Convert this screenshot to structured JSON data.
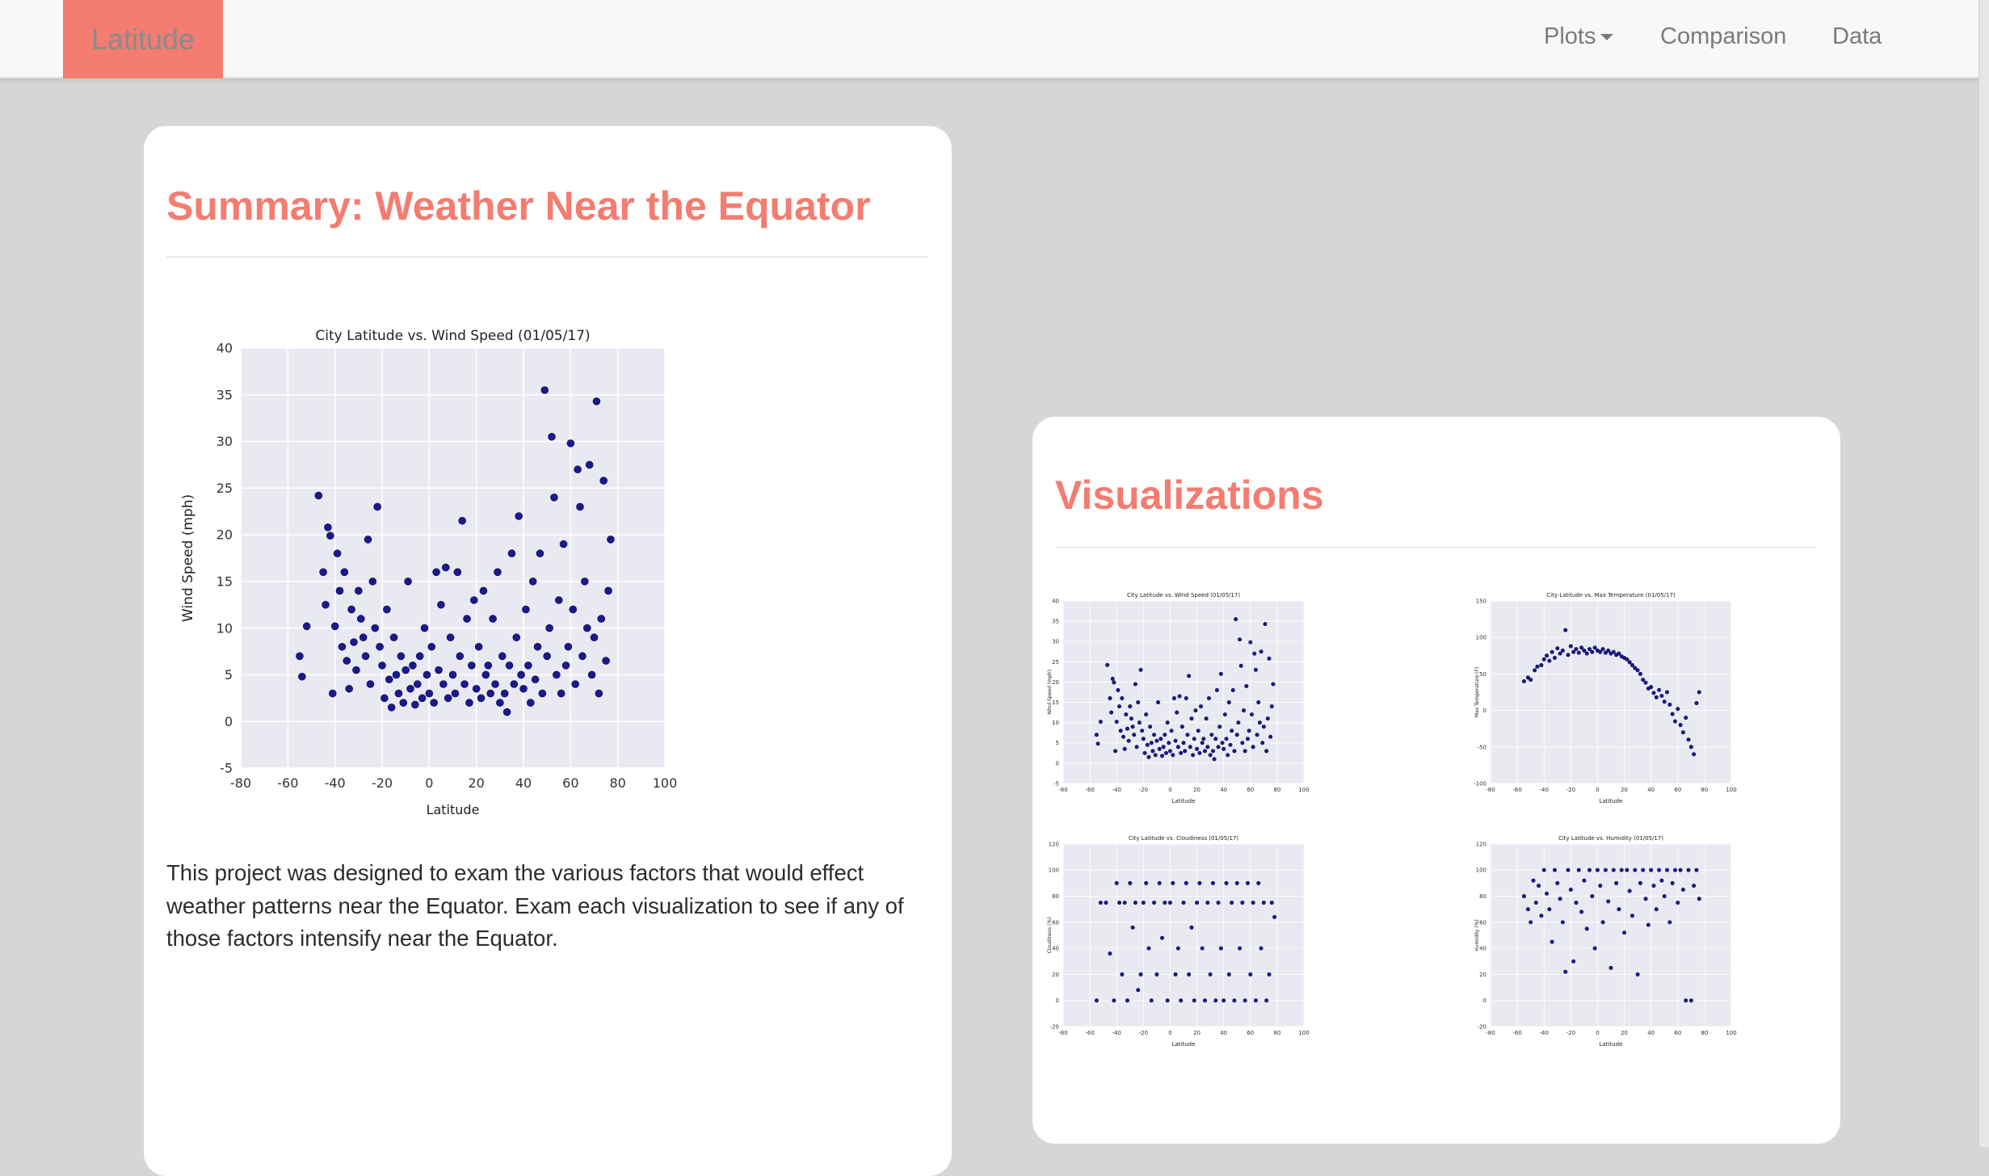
{
  "navbar": {
    "brand": "Latitude",
    "plots_label": "Plots",
    "comparison_label": "Comparison",
    "data_label": "Data"
  },
  "summary": {
    "title": "Summary: Weather Near the Equator",
    "description": "This project was designed to exam the various factors that would effect weather patterns near the Equator. Exam each visualization to see if any of those factors intensify near the Equator."
  },
  "visualizations": {
    "title": "Visualizations"
  },
  "colors": {
    "accent": "#f47c70",
    "point": "#1a1a8c",
    "plot_bg": "#e9e9f1"
  },
  "chart_data": [
    {
      "type": "scatter",
      "title": "City Latitude vs. Wind Speed (01/05/17)",
      "xlabel": "Latitude",
      "ylabel": "Wind Speed (mph)",
      "xlim": [
        -80,
        100
      ],
      "ylim": [
        -5,
        40
      ],
      "xticks": [
        -80,
        -60,
        -40,
        -20,
        0,
        20,
        40,
        60,
        80,
        100
      ],
      "yticks": [
        -5,
        0,
        5,
        10,
        15,
        20,
        25,
        30,
        35,
        40
      ],
      "grid": true,
      "points": [
        [
          -55,
          7
        ],
        [
          -54,
          4.8
        ],
        [
          -52,
          10.2
        ],
        [
          -47,
          24.2
        ],
        [
          -45,
          16
        ],
        [
          -44,
          12.5
        ],
        [
          -43,
          20.8
        ],
        [
          -42,
          19.9
        ],
        [
          -41,
          3
        ],
        [
          -40,
          10.2
        ],
        [
          -39,
          18
        ],
        [
          -38,
          14
        ],
        [
          -37,
          8
        ],
        [
          -36,
          16
        ],
        [
          -35,
          6.5
        ],
        [
          -34,
          3.5
        ],
        [
          -33,
          12
        ],
        [
          -32,
          8.5
        ],
        [
          -31,
          5.5
        ],
        [
          -30,
          14
        ],
        [
          -29,
          11
        ],
        [
          -28,
          9
        ],
        [
          -27,
          7
        ],
        [
          -26,
          19.5
        ],
        [
          -25,
          4
        ],
        [
          -24,
          15
        ],
        [
          -23,
          10
        ],
        [
          -22,
          23
        ],
        [
          -21,
          8
        ],
        [
          -20,
          6
        ],
        [
          -19,
          2.5
        ],
        [
          -18,
          12
        ],
        [
          -17,
          4.5
        ],
        [
          -16,
          1.5
        ],
        [
          -15,
          9
        ],
        [
          -14,
          5
        ],
        [
          -13,
          3
        ],
        [
          -12,
          7
        ],
        [
          -11,
          2
        ],
        [
          -10,
          5.5
        ],
        [
          -9,
          15
        ],
        [
          -8,
          3.5
        ],
        [
          -7,
          6
        ],
        [
          -6,
          1.8
        ],
        [
          -5,
          4
        ],
        [
          -4,
          7
        ],
        [
          -3,
          2.5
        ],
        [
          -2,
          10
        ],
        [
          -1,
          5
        ],
        [
          0,
          3
        ],
        [
          1,
          8
        ],
        [
          2,
          2
        ],
        [
          3,
          16
        ],
        [
          4,
          5.5
        ],
        [
          5,
          12.5
        ],
        [
          6,
          4
        ],
        [
          7,
          16.5
        ],
        [
          8,
          2.5
        ],
        [
          9,
          9
        ],
        [
          10,
          5
        ],
        [
          11,
          3
        ],
        [
          12,
          16
        ],
        [
          13,
          7
        ],
        [
          14,
          21.5
        ],
        [
          15,
          4
        ],
        [
          16,
          11
        ],
        [
          17,
          2
        ],
        [
          18,
          6
        ],
        [
          19,
          13
        ],
        [
          20,
          3.5
        ],
        [
          21,
          8
        ],
        [
          22,
          2.5
        ],
        [
          23,
          14
        ],
        [
          24,
          5
        ],
        [
          25,
          6
        ],
        [
          26,
          3
        ],
        [
          27,
          11
        ],
        [
          28,
          4
        ],
        [
          29,
          16
        ],
        [
          30,
          2
        ],
        [
          31,
          7
        ],
        [
          32,
          3
        ],
        [
          33,
          1
        ],
        [
          34,
          6
        ],
        [
          35,
          18
        ],
        [
          36,
          4
        ],
        [
          37,
          9
        ],
        [
          38,
          22
        ],
        [
          39,
          5
        ],
        [
          40,
          3.5
        ],
        [
          41,
          12
        ],
        [
          42,
          6
        ],
        [
          43,
          2
        ],
        [
          44,
          15
        ],
        [
          45,
          4.5
        ],
        [
          46,
          8
        ],
        [
          47,
          18
        ],
        [
          48,
          3
        ],
        [
          49,
          35.5
        ],
        [
          50,
          7
        ],
        [
          51,
          10
        ],
        [
          52,
          30.5
        ],
        [
          53,
          24
        ],
        [
          54,
          5
        ],
        [
          55,
          13
        ],
        [
          56,
          3
        ],
        [
          57,
          19
        ],
        [
          58,
          6
        ],
        [
          59,
          8
        ],
        [
          60,
          29.8
        ],
        [
          61,
          12
        ],
        [
          62,
          4
        ],
        [
          63,
          27
        ],
        [
          64,
          23
        ],
        [
          65,
          7
        ],
        [
          66,
          15
        ],
        [
          67,
          10
        ],
        [
          68,
          27.5
        ],
        [
          69,
          5
        ],
        [
          70,
          9
        ],
        [
          71,
          34.3
        ],
        [
          72,
          3
        ],
        [
          73,
          11
        ],
        [
          74,
          25.8
        ],
        [
          75,
          6.5
        ],
        [
          76,
          14
        ],
        [
          77,
          19.5
        ]
      ]
    },
    {
      "type": "scatter",
      "title": "City Latitude vs. Max Temperature (01/05/17)",
      "xlabel": "Latitude",
      "ylabel": "Max Temperature (F)",
      "xlim": [
        -80,
        100
      ],
      "ylim": [
        -100,
        150
      ],
      "xticks": [
        -80,
        -60,
        -40,
        -20,
        0,
        20,
        40,
        60,
        80,
        100
      ],
      "yticks": [
        -100,
        -50,
        0,
        50,
        100,
        150
      ],
      "grid": true,
      "points": [
        [
          -55,
          40
        ],
        [
          -52,
          45
        ],
        [
          -50,
          42
        ],
        [
          -47,
          55
        ],
        [
          -45,
          60
        ],
        [
          -42,
          62
        ],
        [
          -40,
          70
        ],
        [
          -38,
          75
        ],
        [
          -36,
          68
        ],
        [
          -34,
          80
        ],
        [
          -32,
          72
        ],
        [
          -30,
          85
        ],
        [
          -28,
          78
        ],
        [
          -26,
          82
        ],
        [
          -24,
          110
        ],
        [
          -22,
          76
        ],
        [
          -20,
          88
        ],
        [
          -18,
          80
        ],
        [
          -16,
          84
        ],
        [
          -14,
          79
        ],
        [
          -12,
          86
        ],
        [
          -10,
          82
        ],
        [
          -8,
          78
        ],
        [
          -6,
          84
        ],
        [
          -4,
          80
        ],
        [
          -2,
          86
        ],
        [
          0,
          82
        ],
        [
          2,
          80
        ],
        [
          4,
          84
        ],
        [
          6,
          79
        ],
        [
          8,
          82
        ],
        [
          10,
          78
        ],
        [
          12,
          80
        ],
        [
          14,
          76
        ],
        [
          16,
          78
        ],
        [
          18,
          74
        ],
        [
          20,
          72
        ],
        [
          22,
          70
        ],
        [
          24,
          66
        ],
        [
          26,
          62
        ],
        [
          28,
          58
        ],
        [
          30,
          55
        ],
        [
          32,
          50
        ],
        [
          34,
          42
        ],
        [
          36,
          38
        ],
        [
          38,
          30
        ],
        [
          40,
          32
        ],
        [
          42,
          24
        ],
        [
          44,
          18
        ],
        [
          46,
          28
        ],
        [
          48,
          20
        ],
        [
          50,
          12
        ],
        [
          52,
          25
        ],
        [
          54,
          8
        ],
        [
          56,
          -5
        ],
        [
          58,
          -15
        ],
        [
          60,
          2
        ],
        [
          62,
          -20
        ],
        [
          64,
          -30
        ],
        [
          66,
          -10
        ],
        [
          68,
          -40
        ],
        [
          70,
          -50
        ],
        [
          72,
          -60
        ],
        [
          74,
          10
        ],
        [
          76,
          25
        ]
      ]
    },
    {
      "type": "scatter",
      "title": "City Latitude vs. Cloudiness (01/05/17)",
      "xlabel": "Latitude",
      "ylabel": "Cloudiness (%)",
      "xlim": [
        -80,
        100
      ],
      "ylim": [
        -20,
        120
      ],
      "xticks": [
        -80,
        -60,
        -40,
        -20,
        0,
        20,
        40,
        60,
        80,
        100
      ],
      "yticks": [
        -20,
        0,
        20,
        40,
        60,
        80,
        100,
        120
      ],
      "grid": true,
      "points": [
        [
          -55,
          0
        ],
        [
          -52,
          75
        ],
        [
          -48,
          75
        ],
        [
          -45,
          36
        ],
        [
          -42,
          0
        ],
        [
          -40,
          90
        ],
        [
          -38,
          75
        ],
        [
          -36,
          20
        ],
        [
          -34,
          75
        ],
        [
          -32,
          0
        ],
        [
          -30,
          90
        ],
        [
          -28,
          56
        ],
        [
          -26,
          75
        ],
        [
          -24,
          8
        ],
        [
          -22,
          20
        ],
        [
          -20,
          75
        ],
        [
          -18,
          90
        ],
        [
          -16,
          40
        ],
        [
          -14,
          0
        ],
        [
          -12,
          75
        ],
        [
          -10,
          20
        ],
        [
          -8,
          90
        ],
        [
          -6,
          48
        ],
        [
          -4,
          75
        ],
        [
          -2,
          0
        ],
        [
          0,
          75
        ],
        [
          2,
          90
        ],
        [
          4,
          20
        ],
        [
          6,
          40
        ],
        [
          8,
          0
        ],
        [
          10,
          75
        ],
        [
          12,
          90
        ],
        [
          14,
          20
        ],
        [
          16,
          56
        ],
        [
          18,
          0
        ],
        [
          20,
          75
        ],
        [
          22,
          90
        ],
        [
          24,
          40
        ],
        [
          26,
          0
        ],
        [
          28,
          75
        ],
        [
          30,
          20
        ],
        [
          32,
          90
        ],
        [
          34,
          0
        ],
        [
          36,
          75
        ],
        [
          38,
          40
        ],
        [
          40,
          0
        ],
        [
          42,
          90
        ],
        [
          44,
          20
        ],
        [
          46,
          75
        ],
        [
          48,
          0
        ],
        [
          50,
          90
        ],
        [
          52,
          40
        ],
        [
          54,
          75
        ],
        [
          56,
          0
        ],
        [
          58,
          90
        ],
        [
          60,
          20
        ],
        [
          62,
          75
        ],
        [
          64,
          0
        ],
        [
          66,
          90
        ],
        [
          68,
          40
        ],
        [
          70,
          75
        ],
        [
          72,
          0
        ],
        [
          74,
          20
        ],
        [
          76,
          75
        ],
        [
          78,
          64
        ]
      ]
    },
    {
      "type": "scatter",
      "title": "City Latitude vs. Humidity (01/05/17)",
      "xlabel": "Latitude",
      "ylabel": "Humidity (%)",
      "xlim": [
        -80,
        100
      ],
      "ylim": [
        -20,
        120
      ],
      "xticks": [
        -80,
        -60,
        -40,
        -20,
        0,
        20,
        40,
        60,
        80,
        100
      ],
      "yticks": [
        -20,
        0,
        20,
        40,
        60,
        80,
        100,
        120
      ],
      "grid": true,
      "points": [
        [
          -55,
          80
        ],
        [
          -52,
          70
        ],
        [
          -50,
          60
        ],
        [
          -48,
          92
        ],
        [
          -46,
          75
        ],
        [
          -44,
          88
        ],
        [
          -42,
          65
        ],
        [
          -40,
          100
        ],
        [
          -38,
          82
        ],
        [
          -36,
          70
        ],
        [
          -34,
          45
        ],
        [
          -32,
          100
        ],
        [
          -30,
          90
        ],
        [
          -28,
          78
        ],
        [
          -26,
          60
        ],
        [
          -24,
          22
        ],
        [
          -22,
          100
        ],
        [
          -20,
          85
        ],
        [
          -18,
          30
        ],
        [
          -16,
          75
        ],
        [
          -14,
          100
        ],
        [
          -12,
          68
        ],
        [
          -10,
          92
        ],
        [
          -8,
          55
        ],
        [
          -6,
          100
        ],
        [
          -4,
          80
        ],
        [
          -2,
          40
        ],
        [
          0,
          100
        ],
        [
          2,
          88
        ],
        [
          4,
          60
        ],
        [
          6,
          100
        ],
        [
          8,
          76
        ],
        [
          10,
          25
        ],
        [
          12,
          100
        ],
        [
          14,
          90
        ],
        [
          16,
          70
        ],
        [
          18,
          100
        ],
        [
          20,
          52
        ],
        [
          22,
          100
        ],
        [
          24,
          84
        ],
        [
          26,
          65
        ],
        [
          28,
          100
        ],
        [
          30,
          20
        ],
        [
          32,
          90
        ],
        [
          34,
          100
        ],
        [
          36,
          78
        ],
        [
          38,
          58
        ],
        [
          40,
          100
        ],
        [
          42,
          88
        ],
        [
          44,
          70
        ],
        [
          46,
          100
        ],
        [
          48,
          92
        ],
        [
          50,
          80
        ],
        [
          52,
          100
        ],
        [
          54,
          60
        ],
        [
          56,
          90
        ],
        [
          58,
          100
        ],
        [
          60,
          75
        ],
        [
          62,
          100
        ],
        [
          64,
          85
        ],
        [
          66,
          0
        ],
        [
          68,
          100
        ],
        [
          70,
          0
        ],
        [
          72,
          88
        ],
        [
          74,
          100
        ],
        [
          76,
          78
        ]
      ]
    }
  ]
}
